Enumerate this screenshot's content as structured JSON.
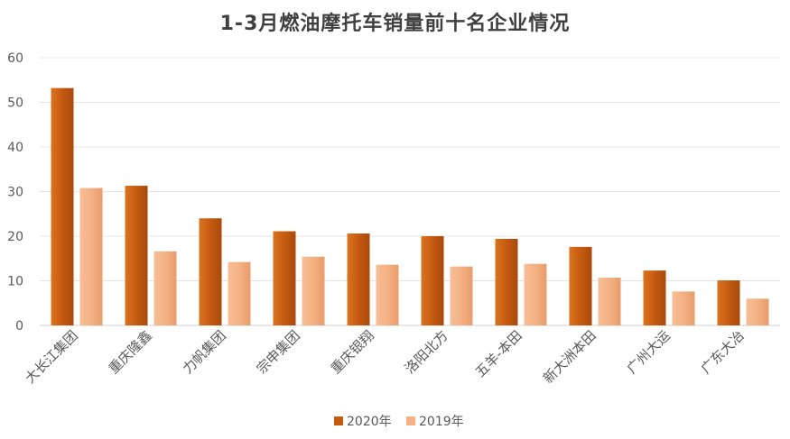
{
  "chart_data": {
    "type": "bar",
    "title": "1-3月燃油摩托车销量前十名企业情况",
    "categories": [
      "大长江集团",
      "重庆隆鑫",
      "力帆集团",
      "宗申集团",
      "重庆银翔",
      "洛阳北方",
      "五羊-本田",
      "新大洲本田",
      "广州大运",
      "广东大冶"
    ],
    "series": [
      {
        "name": "2020年",
        "values": [
          53.2,
          31.3,
          24.0,
          21.1,
          20.6,
          20.0,
          19.4,
          17.6,
          12.3,
          10.1
        ],
        "color": "#C55A11"
      },
      {
        "name": "2019年",
        "values": [
          30.8,
          16.6,
          14.2,
          15.4,
          13.6,
          13.2,
          13.8,
          10.7,
          7.6,
          6.0
        ],
        "color": "#F4B183"
      }
    ],
    "yticks": [
      0,
      10,
      20,
      30,
      40,
      50,
      60
    ],
    "ylim": [
      0,
      60
    ],
    "grid": true,
    "legend_position": "bottom",
    "xlabel": "",
    "ylabel": ""
  }
}
